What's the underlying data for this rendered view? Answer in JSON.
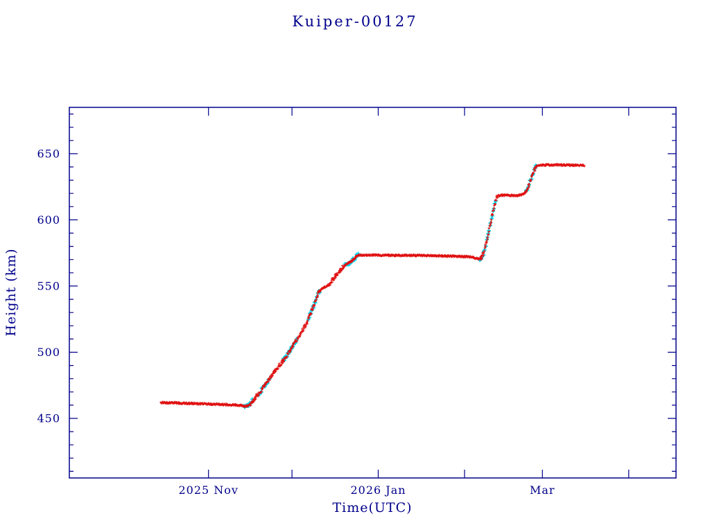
{
  "chart_data": {
    "type": "scatter",
    "title": "Kuiper-00127",
    "xlabel": "Time(UTC)",
    "ylabel": "Height (km)",
    "x_unit": "days from 2025-10-01",
    "xlim": [
      -19,
      199
    ],
    "ylim": [
      405,
      685
    ],
    "x_ticks": [
      {
        "day": 31,
        "label": "2025 Nov"
      },
      {
        "day": 61,
        "label": ""
      },
      {
        "day": 92,
        "label": "2026 Jan"
      },
      {
        "day": 123,
        "label": ""
      },
      {
        "day": 151,
        "label": "Mar"
      },
      {
        "day": 182,
        "label": ""
      }
    ],
    "y_ticks": [
      450,
      500,
      550,
      600,
      650
    ],
    "y_minor_step": 10,
    "legend": "none",
    "grid": false,
    "colors": {
      "axis": "#00008b",
      "primary": "#e01010",
      "secondary": "#00d8f0",
      "background": "#ffffff"
    },
    "series": [
      {
        "name": "height-profile",
        "marker": "plus",
        "color_key": "primary",
        "points": [
          [
            14,
            462
          ],
          [
            18,
            461.8
          ],
          [
            22,
            461.5
          ],
          [
            26,
            461.2
          ],
          [
            30,
            461
          ],
          [
            34,
            460.7
          ],
          [
            38,
            460.4
          ],
          [
            41,
            460.1
          ],
          [
            43,
            459.8
          ],
          [
            44.3,
            459
          ],
          [
            45.2,
            459.6
          ],
          [
            46,
            461
          ],
          [
            47,
            463.5
          ],
          [
            48,
            466
          ],
          [
            49,
            468.5
          ],
          [
            50,
            471
          ],
          [
            51,
            474
          ],
          [
            52,
            477
          ],
          [
            53,
            480
          ],
          [
            54,
            483
          ],
          [
            55,
            486
          ],
          [
            56,
            489
          ],
          [
            57,
            491.5
          ],
          [
            58,
            494
          ],
          [
            59,
            497
          ],
          [
            60,
            500
          ],
          [
            61,
            503.5
          ],
          [
            62,
            507
          ],
          [
            63,
            510.5
          ],
          [
            64,
            514
          ],
          [
            65,
            517.5
          ],
          [
            66,
            521
          ],
          [
            67,
            526
          ],
          [
            68,
            531
          ],
          [
            69,
            536
          ],
          [
            70,
            542
          ],
          [
            71,
            547
          ],
          [
            72.5,
            549
          ],
          [
            74,
            550.5
          ],
          [
            75,
            553
          ],
          [
            76,
            556
          ],
          [
            77,
            558.5
          ],
          [
            78,
            561
          ],
          [
            79,
            563.5
          ],
          [
            80,
            565.5
          ],
          [
            81,
            567
          ],
          [
            82,
            568.2
          ],
          [
            83,
            570
          ],
          [
            84,
            572
          ],
          [
            85,
            573.5
          ],
          [
            88,
            573.5
          ],
          [
            92,
            573.3
          ],
          [
            96,
            573.2
          ],
          [
            100,
            573.2
          ],
          [
            105,
            573.1
          ],
          [
            110,
            573
          ],
          [
            115,
            572.8
          ],
          [
            120,
            572.5
          ],
          [
            124,
            572.2
          ],
          [
            126,
            571.6
          ],
          [
            127.5,
            570.8
          ],
          [
            128.3,
            570.3
          ],
          [
            129,
            571.5
          ],
          [
            129.8,
            575
          ],
          [
            130.6,
            581
          ],
          [
            131.4,
            588
          ],
          [
            132.2,
            596
          ],
          [
            133,
            604
          ],
          [
            133.8,
            611
          ],
          [
            134.5,
            616.5
          ],
          [
            135.2,
            618.3
          ],
          [
            136,
            618.6
          ],
          [
            138,
            618.5
          ],
          [
            140,
            618.5
          ],
          [
            142,
            618.4
          ],
          [
            143.5,
            619
          ],
          [
            144.5,
            620.2
          ],
          [
            145.3,
            622
          ],
          [
            146,
            626
          ],
          [
            146.8,
            630
          ],
          [
            147.6,
            635
          ],
          [
            148.4,
            639
          ],
          [
            149,
            641
          ],
          [
            150,
            641.4
          ],
          [
            153,
            641.5
          ],
          [
            156,
            641.5
          ],
          [
            159,
            641.4
          ],
          [
            162,
            641.3
          ],
          [
            164,
            641.2
          ],
          [
            166,
            641.2
          ]
        ]
      }
    ],
    "secondary": {
      "name": "maneuver-overlay",
      "marker": "plus",
      "color_key": "secondary",
      "intervals": [
        [
          43.5,
          47
        ],
        [
          49,
          53
        ],
        [
          58,
          63
        ],
        [
          67,
          71
        ],
        [
          80,
          85
        ],
        [
          128.5,
          134.5
        ],
        [
          145,
          149
        ]
      ]
    }
  }
}
